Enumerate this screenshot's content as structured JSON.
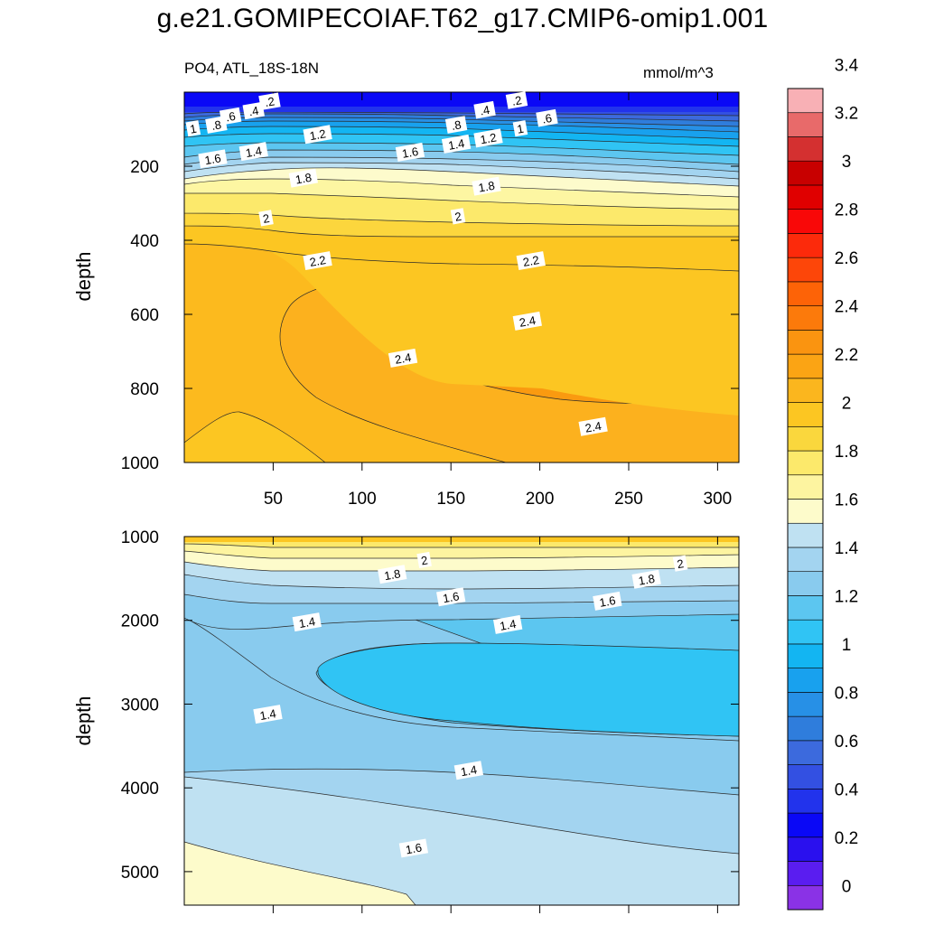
{
  "figure": {
    "title": "g.e21.GOMIPECOIAF.T62_g17.CMIP6-omip1.001",
    "left_subtitle": "PO4, ATL_18S-18N",
    "right_subtitle": "mmol/m^3"
  },
  "chart_data": [
    {
      "type": "contour",
      "name": "upper-panel",
      "variable": "PO4",
      "region": "ATL_18S-18N",
      "units": "mmol/m^3",
      "xlabel": "",
      "ylabel": "depth",
      "xlim": [
        0,
        312
      ],
      "ylim": [
        0,
        1000
      ],
      "y_reversed": true,
      "xticks": [
        50,
        100,
        150,
        200,
        250,
        300
      ],
      "yticks": [
        200,
        400,
        600,
        800,
        1000
      ],
      "ytick_labels": [
        "200",
        "400",
        "600",
        "800",
        "1000"
      ],
      "contour_labels": [
        {
          "text": ".2",
          "x": 48,
          "y": 25
        },
        {
          "text": ".2",
          "x": 187,
          "y": 22
        },
        {
          "text": ".4",
          "x": 39,
          "y": 50
        },
        {
          "text": ".4",
          "x": 169,
          "y": 48
        },
        {
          "text": ".6",
          "x": 26,
          "y": 65
        },
        {
          "text": ".6",
          "x": 204,
          "y": 70
        },
        {
          "text": ".8",
          "x": 18,
          "y": 88
        },
        {
          "text": ".8",
          "x": 153,
          "y": 88
        },
        {
          "text": "1",
          "x": 5,
          "y": 98
        },
        {
          "text": "1",
          "x": 189,
          "y": 98
        },
        {
          "text": "1.2",
          "x": 75,
          "y": 114
        },
        {
          "text": "1.2",
          "x": 171,
          "y": 124
        },
        {
          "text": "1.4",
          "x": 39,
          "y": 160
        },
        {
          "text": "1.4",
          "x": 153,
          "y": 140
        },
        {
          "text": "1.6",
          "x": 16,
          "y": 180
        },
        {
          "text": "1.6",
          "x": 127,
          "y": 162
        },
        {
          "text": "1.8",
          "x": 67,
          "y": 232
        },
        {
          "text": "1.8",
          "x": 170,
          "y": 254
        },
        {
          "text": "2",
          "x": 46,
          "y": 340
        },
        {
          "text": "2",
          "x": 154,
          "y": 335
        },
        {
          "text": "2.2",
          "x": 75,
          "y": 455
        },
        {
          "text": "2.2",
          "x": 195,
          "y": 455
        },
        {
          "text": "2.4",
          "x": 123,
          "y": 718
        },
        {
          "text": "2.4",
          "x": 193,
          "y": 618
        },
        {
          "text": "2.4",
          "x": 230,
          "y": 903
        }
      ]
    },
    {
      "type": "contour",
      "name": "lower-panel",
      "variable": "PO4",
      "xlabel": "",
      "ylabel": "depth",
      "xlim": [
        0,
        312
      ],
      "ylim": [
        1000,
        5400
      ],
      "y_reversed": true,
      "yticks": [
        1000,
        2000,
        3000,
        4000,
        5000
      ],
      "ytick_labels": [
        "1000",
        "2000",
        "3000",
        "4000",
        "5000"
      ],
      "contour_labels": [
        {
          "text": "2",
          "x": 135,
          "y": 1280
        },
        {
          "text": "2",
          "x": 279,
          "y": 1320
        },
        {
          "text": "1.8",
          "x": 117,
          "y": 1450
        },
        {
          "text": "1.8",
          "x": 260,
          "y": 1510
        },
        {
          "text": "1.6",
          "x": 150,
          "y": 1720
        },
        {
          "text": "1.6",
          "x": 238,
          "y": 1770
        },
        {
          "text": "1.4",
          "x": 69,
          "y": 2020
        },
        {
          "text": "1.4",
          "x": 182,
          "y": 2050
        },
        {
          "text": "1.4",
          "x": 47,
          "y": 3120
        },
        {
          "text": "1.4",
          "x": 160,
          "y": 3790
        },
        {
          "text": "1.6",
          "x": 129,
          "y": 4720
        }
      ]
    }
  ],
  "colorbar": {
    "levels": [
      "0",
      "0.2",
      "0.4",
      "0.6",
      "0.8",
      "1",
      "1.2",
      "1.4",
      "1.6",
      "1.8",
      "2",
      "2.2",
      "2.4",
      "2.6",
      "2.8",
      "3",
      "3.2",
      "3.4"
    ],
    "colors": [
      "#8a32e6",
      "#5a1df0",
      "#2a10ee",
      "#0a08f6",
      "#2233ec",
      "#3350e2",
      "#3c6add",
      "#2f7ddc",
      "#2790e6",
      "#18a1ee",
      "#13b5f2",
      "#30c4f4",
      "#5cc6f0",
      "#89cbee",
      "#a3d4f0",
      "#bfe1f2",
      "#fdfbcb",
      "#fdf4a0",
      "#fce96b",
      "#fad73d",
      "#fcc622",
      "#fbb61e",
      "#fba414",
      "#fa9410",
      "#fc7a0b",
      "#fd6307",
      "#fd4609",
      "#fc2a0b",
      "#f90808",
      "#e00000",
      "#c80000",
      "#d43030",
      "#e86a6a",
      "#f8b0b5"
    ]
  }
}
